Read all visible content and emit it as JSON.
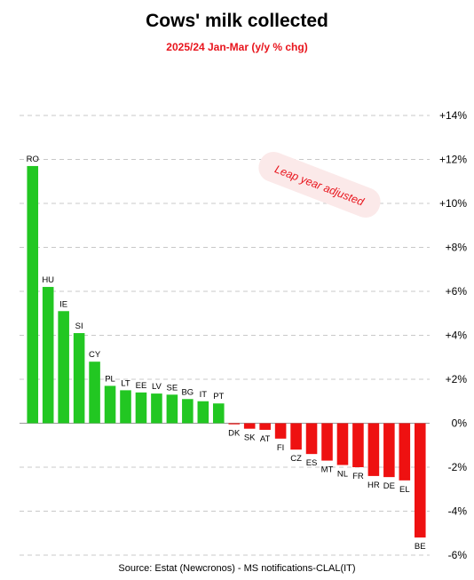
{
  "chart_data": {
    "type": "bar",
    "title": "Cows' milk collected",
    "subtitle": "2025/24  Jan-Mar  (y/y % chg)",
    "source": "Source: Estat (Newcronos) - MS notifications-CLAL(IT)",
    "annotation": "Leap year adjusted",
    "categories": [
      "RO",
      "HU",
      "IE",
      "SI",
      "CY",
      "PL",
      "LT",
      "EE",
      "LV",
      "SE",
      "BG",
      "IT",
      "PT",
      "DK",
      "SK",
      "AT",
      "FI",
      "CZ",
      "ES",
      "MT",
      "NL",
      "FR",
      "HR",
      "DE",
      "EL",
      "BE"
    ],
    "values": [
      11.7,
      6.2,
      5.1,
      4.1,
      2.8,
      1.7,
      1.5,
      1.4,
      1.35,
      1.3,
      1.1,
      1.0,
      0.9,
      -0.05,
      -0.25,
      -0.3,
      -0.7,
      -1.2,
      -1.4,
      -1.7,
      -1.9,
      -2.0,
      -2.4,
      -2.45,
      -2.6,
      -5.2
    ],
    "yticks": [
      14,
      12,
      10,
      8,
      6,
      4,
      2,
      0,
      -2,
      -4,
      -6
    ],
    "ytick_labels": [
      "+14%",
      "+12%",
      "+10%",
      "+8%",
      "+6%",
      "+4%",
      "+2%",
      "0%",
      "-2%",
      "-4%",
      "-6%"
    ],
    "ylim": [
      -6,
      14
    ],
    "grid": true,
    "y_axis_side": "right",
    "colors": {
      "positive": "#22c722",
      "negative": "#ee1111",
      "grid": "#c8c8c8",
      "accent": "#e8141c"
    }
  }
}
